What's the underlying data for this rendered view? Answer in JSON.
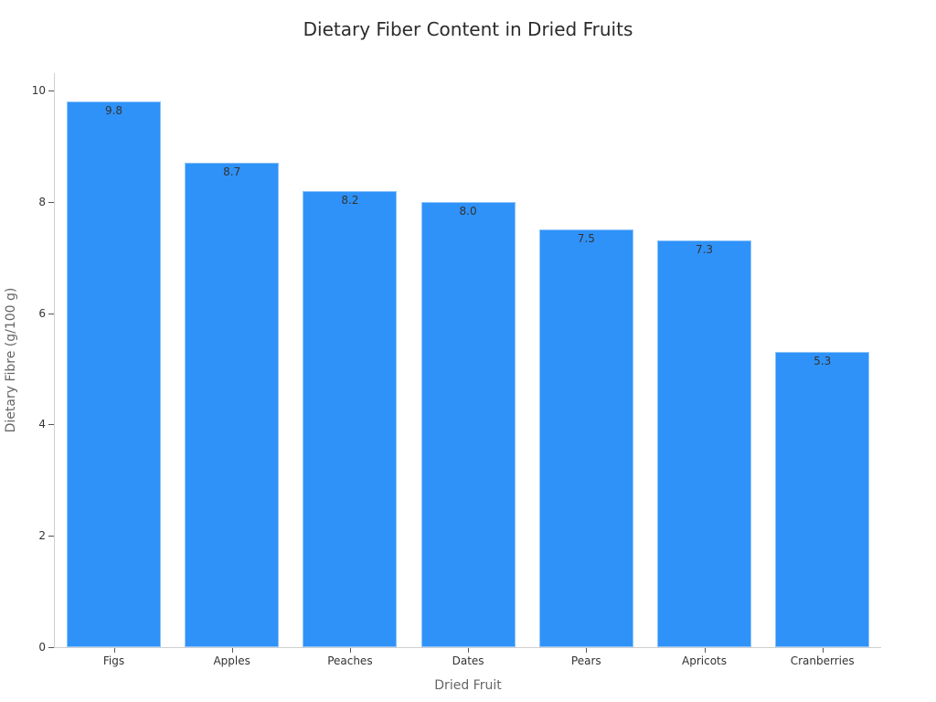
{
  "chart_data": {
    "type": "bar",
    "title": "Dietary Fiber Content in Dried Fruits",
    "xlabel": "Dried Fruit",
    "ylabel": "Dietary Fibre (g/100 g)",
    "categories": [
      "Figs",
      "Apples",
      "Peaches",
      "Dates",
      "Pears",
      "Apricots",
      "Cranberries"
    ],
    "values": [
      9.8,
      8.7,
      8.2,
      8.0,
      7.5,
      7.3,
      5.3
    ],
    "value_labels": [
      "9.8",
      "8.7",
      "8.2",
      "8.0",
      "7.5",
      "7.3",
      "5.3"
    ],
    "ylim": [
      0,
      10.3
    ],
    "yticks": [
      0,
      2,
      4,
      6,
      8,
      10
    ],
    "grid": false,
    "legend": null,
    "bar_color": "#2f92f8"
  }
}
